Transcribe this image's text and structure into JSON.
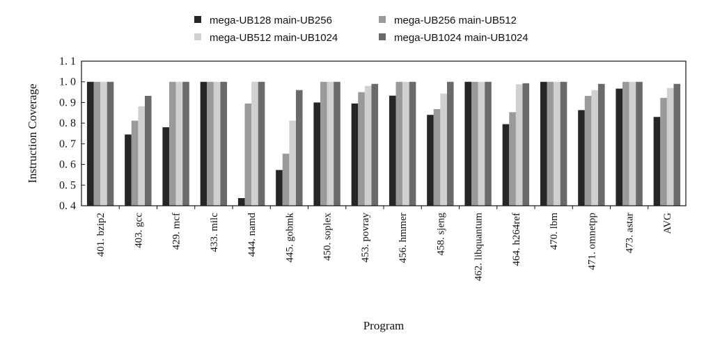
{
  "chart_data": {
    "type": "bar",
    "title": "",
    "xlabel": "Program",
    "ylabel": "Instruction Coverage",
    "ylim": [
      0.4,
      1.1
    ],
    "yticks": [
      "0. 4",
      "0. 5",
      "0. 6",
      "0. 7",
      "0. 8",
      "0. 9",
      "1. 0",
      "1. 1"
    ],
    "ytick_values": [
      0.4,
      0.5,
      0.6,
      0.7,
      0.8,
      0.9,
      1.0,
      1.1
    ],
    "grid": false,
    "legend_position": "top",
    "categories": [
      "401. bzip2",
      "403. gcc",
      "429. mcf",
      "433. milc",
      "444. namd",
      "445. gobmk",
      "450. soplex",
      "453. povray",
      "456. hmmer",
      "458. sjeng",
      "462. libquantum",
      "464. h264ref",
      "470. lbm",
      "471. omnetpp",
      "473. astar",
      "AVG"
    ],
    "series": [
      {
        "name": "mega-UB128 main-UB256",
        "color": "#262626",
        "values": [
          1.0,
          0.745,
          0.78,
          1.0,
          0.437,
          0.573,
          0.9,
          0.895,
          0.933,
          0.84,
          1.0,
          0.795,
          1.0,
          0.863,
          0.967,
          0.83
        ]
      },
      {
        "name": "mega-UB256 main-UB512",
        "color": "#9a9a9a",
        "values": [
          1.0,
          0.812,
          1.0,
          1.0,
          0.895,
          0.652,
          1.0,
          0.95,
          1.0,
          0.868,
          1.0,
          0.853,
          1.0,
          0.932,
          1.0,
          0.922
        ]
      },
      {
        "name": "mega-UB512 main-UB1024",
        "color": "#d0d0d0",
        "values": [
          1.0,
          0.882,
          1.0,
          1.0,
          1.0,
          0.812,
          1.0,
          0.98,
          1.0,
          0.943,
          1.0,
          0.988,
          1.0,
          0.96,
          1.0,
          0.97
        ]
      },
      {
        "name": "mega-UB1024 main-UB1024",
        "color": "#6a6a6a",
        "values": [
          1.0,
          0.932,
          1.0,
          1.0,
          1.0,
          0.96,
          1.0,
          0.99,
          1.0,
          1.0,
          1.0,
          0.993,
          1.0,
          0.99,
          1.0,
          0.99
        ]
      }
    ]
  }
}
